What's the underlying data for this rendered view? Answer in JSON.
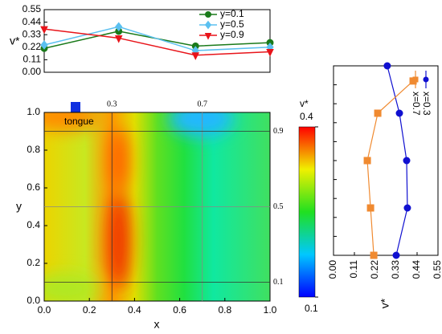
{
  "top_chart": {
    "type": "line",
    "y_label": "v*",
    "x": [
      0,
      0.33,
      0.67,
      1
    ],
    "xlim": [
      0,
      1
    ],
    "ylim": [
      0,
      0.55
    ],
    "yticks": [
      {
        "value": 0,
        "label": "0.00"
      },
      0.11,
      0.22,
      0.33,
      0.44,
      0.55
    ],
    "series": [
      {
        "name": "y=0.1",
        "color": "#1a7a1a",
        "marker": "circle",
        "values": [
          0.21,
          0.36,
          0.23,
          0.26
        ]
      },
      {
        "name": "y=0.5",
        "color": "#5bc0f0",
        "marker": "diamond",
        "values": [
          0.24,
          0.4,
          0.19,
          0.22
        ]
      },
      {
        "name": "y=0.9",
        "color": "#e8141a",
        "marker": "triangle",
        "values": [
          0.38,
          0.3,
          0.15,
          0.18
        ]
      }
    ]
  },
  "heatmap": {
    "type": "heatmap",
    "x_label": "x",
    "y_label": "y",
    "annotation": "tongue",
    "xlim": [
      0,
      1
    ],
    "ylim": [
      0,
      1
    ],
    "xticks": [
      {
        "value": 0,
        "label": "0.0"
      },
      0.2,
      0.4,
      0.6,
      0.8,
      {
        "value": 1,
        "label": "1.0"
      }
    ],
    "yticks": [
      {
        "value": 0,
        "label": "0.0"
      },
      0.2,
      0.4,
      0.6,
      0.8,
      {
        "value": 1,
        "label": "1.0"
      }
    ],
    "guides_x": [
      0.3,
      0.7
    ],
    "guides_y": [
      0.9,
      0.5,
      0.1
    ],
    "colorbar": {
      "label": "v*",
      "clim": [
        0.1,
        0.4
      ],
      "ticks": [
        0.4,
        0.1
      ]
    }
  },
  "side_chart": {
    "type": "line",
    "x_label": "v*",
    "xlim": [
      0,
      0.55
    ],
    "xticks": [
      {
        "value": 0,
        "label": "0.00"
      },
      0.11,
      0.22,
      0.33,
      0.44,
      0.55
    ],
    "ylim": [
      0,
      1
    ],
    "yticks": [
      0,
      0.1,
      0.2,
      0.3,
      0.4,
      0.5,
      0.6,
      0.7,
      0.8,
      0.9,
      1
    ],
    "series": [
      {
        "name": "x=0.3",
        "color": "#1010d0",
        "marker": "circle",
        "y": [
          1,
          0.75,
          0.5,
          0.25,
          0
        ],
        "values": [
          0.283,
          0.347,
          0.385,
          0.389,
          0.33
        ]
      },
      {
        "name": "x=0.7",
        "color": "#f08a30",
        "marker": "square",
        "y": [
          0.92,
          0.75,
          0.5,
          0.25,
          0
        ],
        "values": [
          0.419,
          0.233,
          0.178,
          0.195,
          0.212
        ]
      }
    ]
  }
}
